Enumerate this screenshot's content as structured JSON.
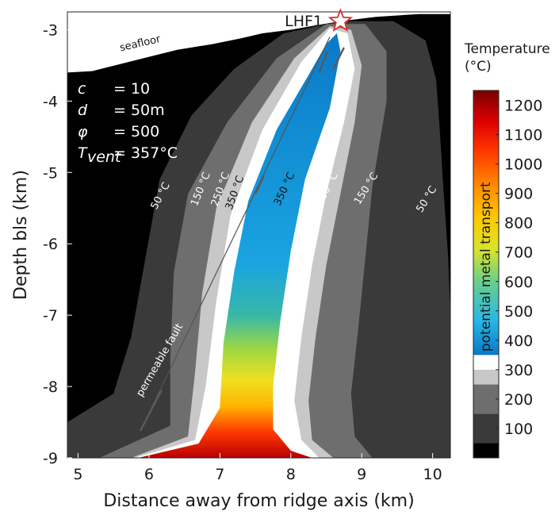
{
  "chart_data": {
    "type": "heatmap",
    "xlabel": "Distance away from ridge axis (km)",
    "ylabel": "Depth bls (km)",
    "xlim": [
      4.85,
      10.25
    ],
    "ylim": [
      -9,
      -2.75
    ],
    "xticks": [
      "5",
      "6",
      "7",
      "8",
      "9",
      "10"
    ],
    "yticks": [
      "-3",
      "-4",
      "-5",
      "-6",
      "-7",
      "-8",
      "-9"
    ],
    "annotations": {
      "seafloor": "seafloor",
      "vent": "LHF1",
      "fault": "permeable fault"
    },
    "params": [
      {
        "sym": "c",
        "sub": "",
        "val": "= 10"
      },
      {
        "sym": "d",
        "sub": "",
        "val": "= 50m"
      },
      {
        "sym": "φ",
        "sub": "",
        "val": "= 500"
      },
      {
        "sym": "T",
        "sub": "vent",
        "val": "= 357°C"
      }
    ],
    "contour_labels": [
      {
        "text": "50 °C",
        "x": 6.2,
        "y": -5.35,
        "angle": -62,
        "color": "#ffffff"
      },
      {
        "text": "150 °C",
        "x": 6.77,
        "y": -5.25,
        "angle": -68,
        "color": "#ffffff"
      },
      {
        "text": "250 °C",
        "x": 7.05,
        "y": -5.25,
        "angle": -70,
        "color": "#ffffff"
      },
      {
        "text": "350 °C",
        "x": 7.25,
        "y": -5.3,
        "angle": -70,
        "color": "#111111"
      },
      {
        "text": "350 °C",
        "x": 7.95,
        "y": -5.25,
        "angle": -65,
        "color": "#111111"
      },
      {
        "text": "250 °C",
        "x": 8.55,
        "y": -5.25,
        "angle": -62,
        "color": "#ffffff"
      },
      {
        "text": "150 °C",
        "x": 9.1,
        "y": -5.25,
        "angle": -58,
        "color": "#ffffff"
      },
      {
        "text": "50 °C",
        "x": 9.95,
        "y": -5.4,
        "angle": -58,
        "color": "#ffffff"
      }
    ],
    "colorbar": {
      "title": [
        "Temperature",
        "(°C)"
      ],
      "ticks": [
        100,
        200,
        300,
        400,
        500,
        600,
        700,
        800,
        900,
        1000,
        1100,
        1200
      ],
      "range": [
        0,
        1250
      ],
      "band_label": "potential metal transport"
    }
  },
  "colors": {
    "background": "#000000",
    "c50": "#3a3a3a",
    "c150": "#6e6e6e",
    "c250": "#c8c8c8",
    "c300": "#ffffff",
    "vent_star": "#d9302b"
  }
}
